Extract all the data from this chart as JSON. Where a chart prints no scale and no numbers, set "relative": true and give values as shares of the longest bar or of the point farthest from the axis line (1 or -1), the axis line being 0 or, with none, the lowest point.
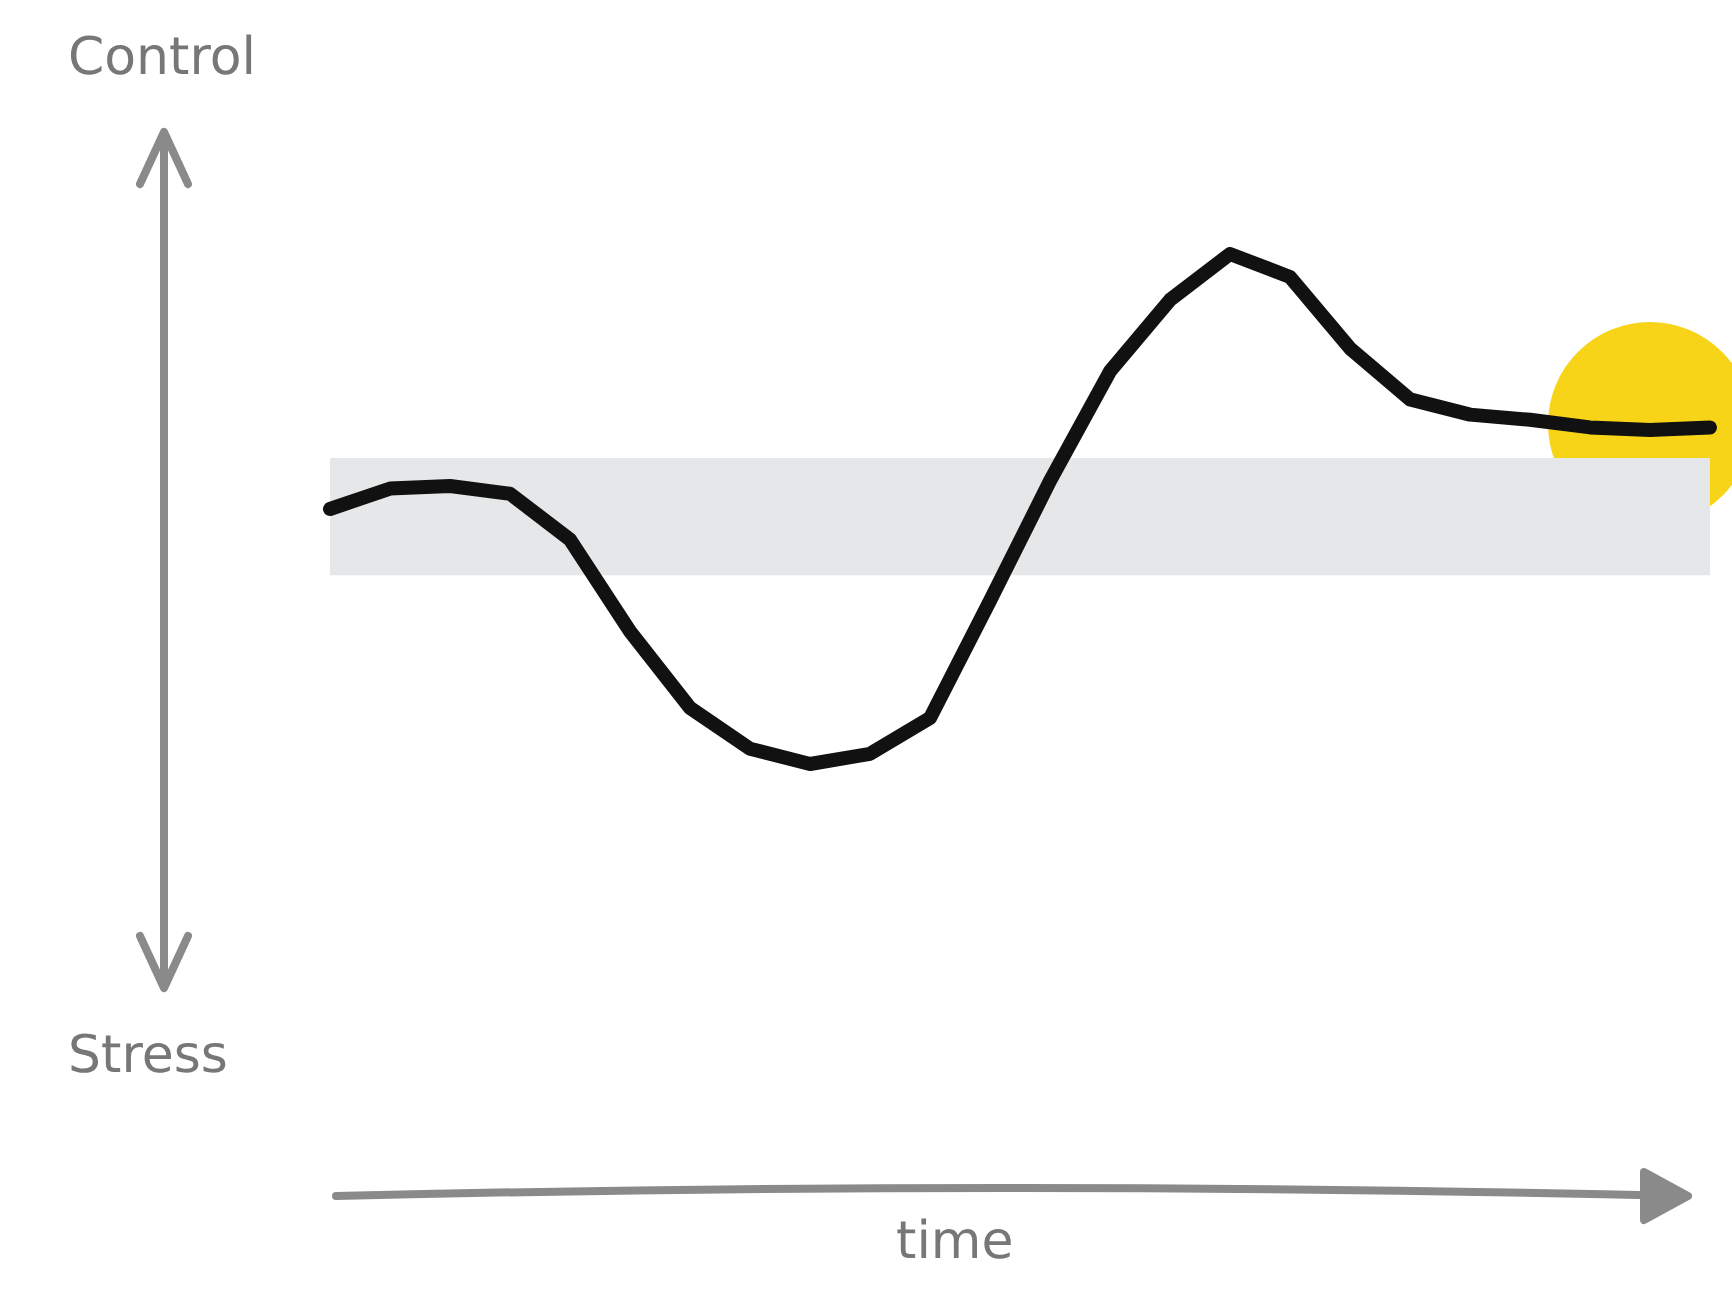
{
  "chart_data": {
    "type": "line",
    "relative": true,
    "annotations": [
      "Control",
      "Stress",
      "time"
    ],
    "categories": [
      null,
      null,
      null,
      null,
      null,
      null,
      null,
      null,
      null,
      null,
      null,
      null,
      null,
      null,
      null,
      null,
      null,
      null,
      null,
      null,
      null,
      null,
      null,
      null
    ],
    "series": [
      {
        "color": "#111111",
        "values": [
          0.5,
          0.54,
          0.545,
          0.53,
          0.44,
          0.26,
          0.11,
          0.03,
          0,
          0.02,
          0.09,
          0.32,
          0.555,
          0.77,
          0.91,
          1,
          0.955,
          0.815,
          0.715,
          0.685,
          0.675,
          0.66,
          0.655,
          0.66
        ]
      }
    ],
    "bands": [
      {
        "axis": "y",
        "from": 0.37,
        "to": 0.6,
        "color": "#e6e7e8"
      }
    ]
  }
}
